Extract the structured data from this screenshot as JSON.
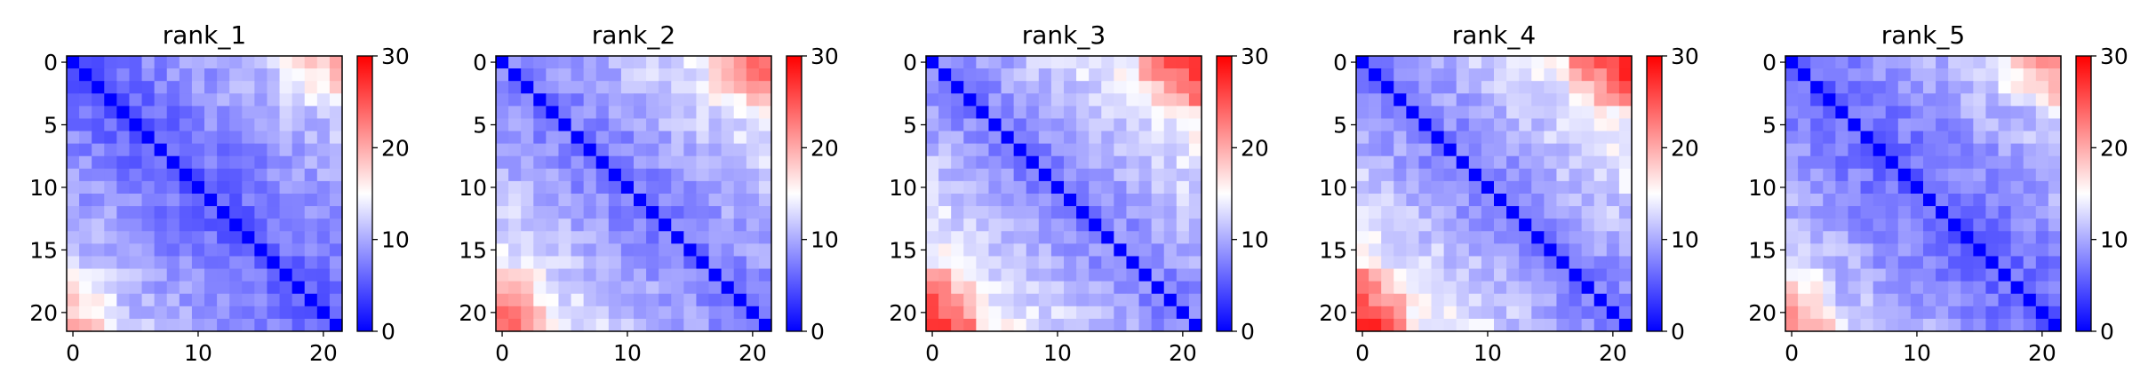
{
  "chart_data": [
    {
      "type": "heatmap",
      "title": "rank_1",
      "n": 22,
      "x_ticks": [
        "0",
        "10",
        "20"
      ],
      "y_ticks": [
        "0",
        "5",
        "10",
        "15",
        "20"
      ],
      "colorbar": {
        "range": [
          0,
          30
        ],
        "ticks": [
          "0",
          "10",
          "20",
          "30"
        ],
        "colormap": "bwr"
      },
      "params": {
        "base": 5.5,
        "slope": 0.38,
        "corner": 6,
        "bias": 0.0
      }
    },
    {
      "type": "heatmap",
      "title": "rank_2",
      "n": 22,
      "x_ticks": [
        "0",
        "10",
        "20"
      ],
      "y_ticks": [
        "0",
        "5",
        "10",
        "15",
        "20"
      ],
      "colorbar": {
        "range": [
          0,
          30
        ],
        "ticks": [
          "0",
          "10",
          "20",
          "30"
        ],
        "colormap": "bwr"
      },
      "params": {
        "base": 6.0,
        "slope": 0.45,
        "corner": 8,
        "bias": 0.8
      }
    },
    {
      "type": "heatmap",
      "title": "rank_3",
      "n": 22,
      "x_ticks": [
        "0",
        "10",
        "20"
      ],
      "y_ticks": [
        "0",
        "5",
        "10",
        "15",
        "20"
      ],
      "colorbar": {
        "range": [
          0,
          30
        ],
        "ticks": [
          "0",
          "10",
          "20",
          "30"
        ],
        "colormap": "bwr"
      },
      "params": {
        "base": 6.0,
        "slope": 0.5,
        "corner": 10,
        "bias": 1.2
      }
    },
    {
      "type": "heatmap",
      "title": "rank_4",
      "n": 22,
      "x_ticks": [
        "0",
        "10",
        "20"
      ],
      "y_ticks": [
        "0",
        "5",
        "10",
        "15",
        "20"
      ],
      "colorbar": {
        "range": [
          0,
          30
        ],
        "ticks": [
          "0",
          "10",
          "20",
          "30"
        ],
        "colormap": "bwr"
      },
      "params": {
        "base": 6.0,
        "slope": 0.5,
        "corner": 11,
        "bias": 1.2
      }
    },
    {
      "type": "heatmap",
      "title": "rank_5",
      "n": 22,
      "x_ticks": [
        "0",
        "10",
        "20"
      ],
      "y_ticks": [
        "0",
        "5",
        "10",
        "15",
        "20"
      ],
      "colorbar": {
        "range": [
          0,
          30
        ],
        "ticks": [
          "0",
          "10",
          "20",
          "30"
        ],
        "colormap": "bwr"
      },
      "params": {
        "base": 5.5,
        "slope": 0.4,
        "corner": 7,
        "bias": 0.2
      }
    }
  ]
}
